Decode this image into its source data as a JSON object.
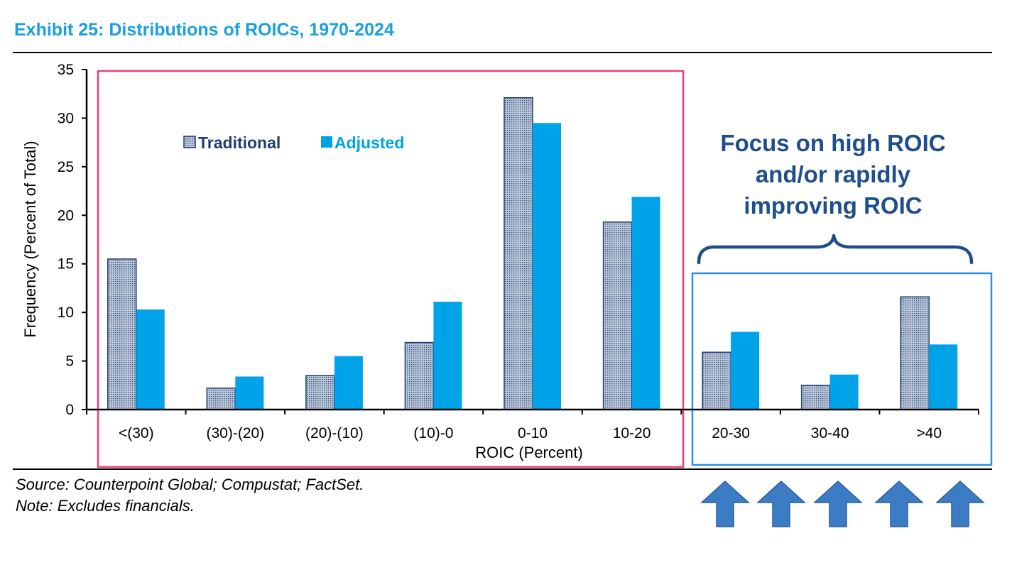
{
  "title": "Exhibit 25: Distributions of ROICs, 1970-2024",
  "chart_data": {
    "type": "bar",
    "categories": [
      "<(30)",
      "(30)-(20)",
      "(20)-(10)",
      "(10)-0",
      "0-10",
      "10-20",
      "20-30",
      "30-40",
      ">40"
    ],
    "series": [
      {
        "name": "Traditional",
        "values": [
          15.5,
          2.2,
          3.5,
          6.9,
          32.1,
          19.3,
          5.9,
          2.5,
          11.6
        ]
      },
      {
        "name": "Adjusted",
        "values": [
          10.3,
          3.4,
          5.5,
          11.1,
          29.5,
          21.9,
          8.0,
          3.6,
          6.7
        ]
      }
    ],
    "xlabel": "ROIC (Percent)",
    "ylabel": "Frequency (Percent of Total)",
    "ylim": [
      0,
      35
    ],
    "yticks": [
      "0",
      "5",
      "10",
      "15",
      "20",
      "25",
      "30",
      "35"
    ],
    "legend": "top-left",
    "annotation": [
      "Focus on high ROIC",
      "and/or rapidly",
      "improving ROIC"
    ],
    "colors": {
      "traditional_fill": "#bcc6d8",
      "traditional_dot": "#3a5a86",
      "traditional_border": "#1f3d73",
      "adjusted": "#00a2e8",
      "left_box": "#e8407a",
      "right_box": "#2d8fe0",
      "annotation": "#1f4e8c",
      "arrows": "#3c7cc4",
      "arrow_border": "#2c5f9c"
    }
  },
  "footer": {
    "source": "Source: Counterpoint Global; Compustat; FactSet.",
    "note": "Note: Excludes financials."
  },
  "arrow_count": 5
}
